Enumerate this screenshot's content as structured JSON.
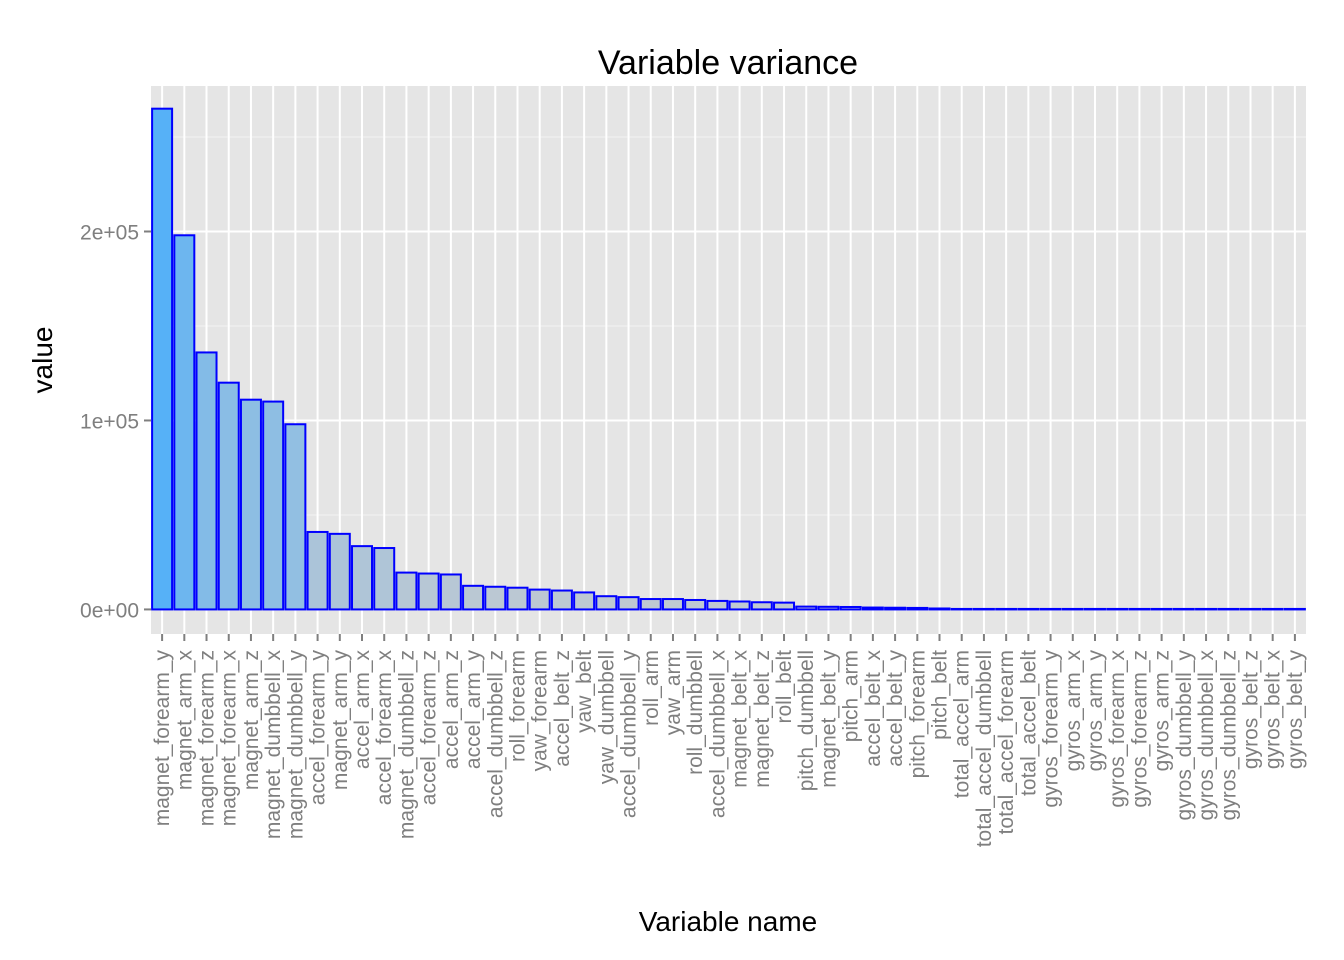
{
  "chart_data": {
    "type": "bar",
    "title": "Variable variance",
    "xlabel": "Variable name",
    "ylabel": "value",
    "ylim": [
      -13000,
      277000
    ],
    "yticks": [
      0,
      100000,
      200000
    ],
    "ytick_labels": [
      "0e+00",
      "1e+05",
      "2e+05"
    ],
    "grid": true,
    "categories": [
      "magnet_forearm_y",
      "magnet_arm_x",
      "magnet_forearm_z",
      "magnet_forearm_x",
      "magnet_arm_z",
      "magnet_dumbbell_x",
      "magnet_dumbbell_y",
      "accel_forearm_y",
      "magnet_arm_y",
      "accel_arm_x",
      "accel_forearm_x",
      "magnet_dumbbell_z",
      "accel_forearm_z",
      "accel_arm_z",
      "accel_arm_y",
      "accel_dumbbell_z",
      "roll_forearm",
      "yaw_forearm",
      "accel_belt_z",
      "yaw_belt",
      "yaw_dumbbell",
      "accel_dumbbell_y",
      "roll_arm",
      "yaw_arm",
      "roll_dumbbell",
      "accel_dumbbell_x",
      "magnet_belt_x",
      "magnet_belt_z",
      "roll_belt",
      "pitch_dumbbell",
      "magnet_belt_y",
      "pitch_arm",
      "accel_belt_x",
      "accel_belt_y",
      "pitch_forearm",
      "pitch_belt",
      "total_accel_arm",
      "total_accel_dumbbell",
      "total_accel_forearm",
      "total_accel_belt",
      "gyros_forearm_y",
      "gyros_arm_x",
      "gyros_arm_y",
      "gyros_forearm_x",
      "gyros_forearm_z",
      "gyros_arm_z",
      "gyros_dumbbell_y",
      "gyros_dumbbell_x",
      "gyros_dumbbell_z",
      "gyros_belt_z",
      "gyros_belt_x",
      "gyros_belt_y"
    ],
    "values": [
      265000,
      198000,
      136000,
      120000,
      111000,
      110000,
      98000,
      41000,
      40000,
      33500,
      32500,
      19500,
      19000,
      18500,
      12500,
      12000,
      11500,
      10500,
      10000,
      9000,
      7000,
      6500,
      5500,
      5500,
      5000,
      4500,
      4200,
      3800,
      3600,
      1500,
      1400,
      1300,
      1000,
      900,
      800,
      500,
      150,
      120,
      100,
      30,
      10,
      8,
      8,
      7,
      6,
      5,
      5,
      4,
      3,
      2,
      1,
      1
    ],
    "colors": {
      "panel": "#e5e5e5",
      "grid_major": "#ffffff",
      "grid_minor": "#f2f2f2",
      "bar_stroke": "#0000ff",
      "fill_high": "#56b1f7",
      "fill_low": "#c4cad0",
      "tick_text": "#7f7f7f"
    }
  }
}
